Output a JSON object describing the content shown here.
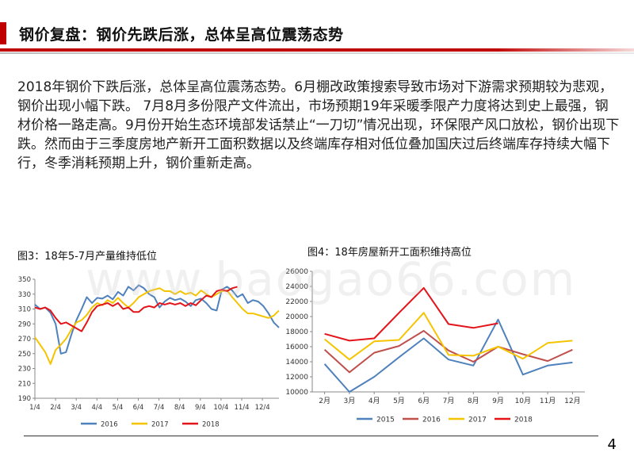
{
  "slide": {
    "title": "钢价复盘：钢价先跌后涨，总体呈高位震荡态势",
    "paragraph": "2018年钢价下跌后涨，总体呈高位震荡态势。6月棚改政策搜索导致市场对下游需求预期较为悲观，钢价出现小幅下跌。 7月8月多份限产文件流出，市场预期19年采暖季限产力度将达到史上最强，钢材价格一路走高。9月份开始生态环境部发话禁止“一刀切”情况出现，环保限产风口放松，钢价出现下跌。然而由于三季度房地产新开工面积数据以及终端库存相对低位叠加国庆过后终端库存持续大幅下行，冬季消耗预期上升，钢价重新走高。",
    "page_number": "4",
    "watermark": "www.baogao66.com"
  },
  "colors": {
    "accent": "#c00000",
    "s2015": "#4f81bd",
    "s2016": "#c0504d",
    "s2017": "#f5c400",
    "s2018": "#e3141a"
  },
  "figure3": {
    "caption": "图3：18年5-7月产量维持低位",
    "chart_data": {
      "type": "line",
      "ylim": [
        190,
        350
      ],
      "yticks": [
        190,
        210,
        230,
        250,
        270,
        290,
        310,
        330,
        350
      ],
      "x_labels": [
        "1/4",
        "2/4",
        "3/4",
        "4/4",
        "5/4",
        "6/4",
        "7/4",
        "8/4",
        "9/4",
        "10/4",
        "11/4",
        "12/4"
      ],
      "grid": false,
      "legend": "bottom",
      "series": [
        {
          "name": "2016",
          "color": "#4f81bd",
          "values": [
            316,
            310,
            312,
            305,
            290,
            250,
            252,
            275,
            295,
            310,
            326,
            318,
            325,
            324,
            328,
            323,
            333,
            328,
            340,
            335,
            342,
            338,
            330,
            326,
            312,
            320,
            325,
            322,
            324,
            320,
            314,
            322,
            324,
            318,
            310,
            308,
            336,
            340,
            335,
            326,
            330,
            318,
            322,
            320,
            314,
            304,
            292,
            285
          ]
        },
        {
          "name": "2017",
          "color": "#f5c400",
          "values": [
            272,
            262,
            252,
            236,
            255,
            262,
            270,
            282,
            292,
            295,
            302,
            312,
            318,
            315,
            322,
            318,
            325,
            318,
            312,
            318,
            326,
            330,
            334,
            336,
            338,
            334,
            334,
            330,
            334,
            330,
            332,
            328,
            335,
            330,
            326,
            330,
            334,
            335,
            326,
            318,
            310,
            304,
            304,
            302,
            300,
            298,
            301,
            308
          ]
        },
        {
          "name": "2018",
          "color": "#e3141a",
          "values": [
            312,
            310,
            312,
            308,
            298,
            290,
            292,
            288,
            284,
            280,
            292,
            306,
            314,
            316,
            318,
            314,
            318,
            310,
            312,
            306,
            306,
            312,
            314,
            312,
            318,
            316,
            318,
            316,
            318,
            314,
            318,
            315,
            322,
            328,
            326,
            334,
            336,
            334,
            338,
            340
          ]
        }
      ]
    }
  },
  "figure4": {
    "caption": "图4：18年房屋新开工面积维持高位",
    "chart_data": {
      "type": "line",
      "ylim": [
        10000,
        26000
      ],
      "yticks": [
        10000,
        12000,
        14000,
        16000,
        18000,
        20000,
        22000,
        24000,
        26000
      ],
      "categories": [
        "2月",
        "3月",
        "4月",
        "5月",
        "6月",
        "7月",
        "8月",
        "9月",
        "10月",
        "11月",
        "12月"
      ],
      "grid": false,
      "legend": "bottom",
      "series": [
        {
          "name": "2015",
          "color": "#4f81bd",
          "values": [
            13700,
            10000,
            12000,
            14600,
            17100,
            14300,
            13500,
            19600,
            12300,
            13500,
            13900
          ]
        },
        {
          "name": "2016",
          "color": "#c0504d",
          "values": [
            15600,
            12600,
            15200,
            16100,
            18100,
            15500,
            14000,
            16000,
            15000,
            14100,
            15600
          ]
        },
        {
          "name": "2017",
          "color": "#f5c400",
          "values": [
            17000,
            14300,
            16700,
            16900,
            20500,
            14900,
            14800,
            16000,
            14400,
            16500,
            16800
          ]
        },
        {
          "name": "2018",
          "color": "#e3141a",
          "values": [
            17700,
            16800,
            17100,
            20500,
            23800,
            19000,
            18500,
            19100,
            null,
            null,
            null
          ]
        }
      ]
    }
  }
}
